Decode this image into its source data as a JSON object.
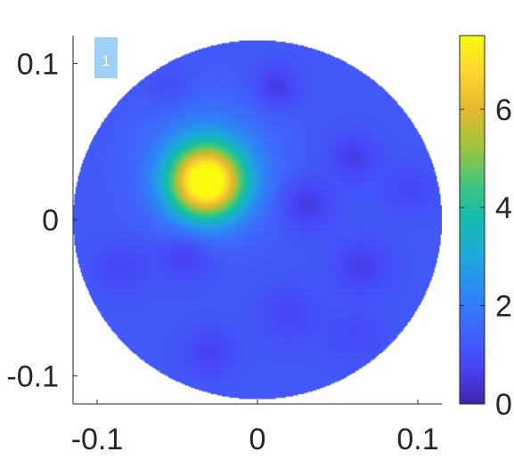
{
  "chart_data": {
    "type": "heatmap",
    "title": "",
    "xlabel": "",
    "ylabel": "",
    "xlim": [
      -0.115,
      0.115
    ],
    "ylim": [
      -0.118,
      0.118
    ],
    "x_ticks": [
      {
        "value": -0.1,
        "label": "-0.1"
      },
      {
        "value": 0,
        "label": "0"
      },
      {
        "value": 0.1,
        "label": "0.1"
      }
    ],
    "y_ticks": [
      {
        "value": 0.1,
        "label": "0.1"
      },
      {
        "value": 0,
        "label": "0"
      },
      {
        "value": -0.1,
        "label": "-0.1"
      }
    ],
    "domain": {
      "shape": "circle",
      "center": [
        0,
        0
      ],
      "radius": 0.115
    },
    "colormap": "parula",
    "clim": [
      0,
      7.5
    ],
    "colorbar": {
      "ticks": [
        {
          "value": 0,
          "label": "0"
        },
        {
          "value": 2,
          "label": "2"
        },
        {
          "value": 4,
          "label": "4"
        },
        {
          "value": 6,
          "label": "6"
        }
      ]
    },
    "baseline": 1.2,
    "blobs": [
      {
        "x": -0.032,
        "y": 0.024,
        "sigma": 0.016,
        "amp": 6.3
      },
      {
        "x": -0.03,
        "y": 0.035,
        "sigma": 0.026,
        "amp": 1.3
      },
      {
        "x": -0.045,
        "y": -0.022,
        "sigma": 0.011,
        "amp": -0.6
      },
      {
        "x": 0.012,
        "y": 0.085,
        "sigma": 0.009,
        "amp": -0.7
      },
      {
        "x": 0.03,
        "y": 0.01,
        "sigma": 0.011,
        "amp": -0.7
      },
      {
        "x": 0.06,
        "y": 0.04,
        "sigma": 0.01,
        "amp": -0.6
      },
      {
        "x": 0.065,
        "y": -0.03,
        "sigma": 0.011,
        "amp": -0.6
      },
      {
        "x": -0.03,
        "y": -0.085,
        "sigma": 0.01,
        "amp": -0.5
      },
      {
        "x": 0.02,
        "y": -0.06,
        "sigma": 0.012,
        "amp": -0.4
      },
      {
        "x": -0.085,
        "y": -0.03,
        "sigma": 0.011,
        "amp": -0.4
      },
      {
        "x": 0.095,
        "y": 0.02,
        "sigma": 0.01,
        "amp": -0.4
      },
      {
        "x": -0.055,
        "y": 0.085,
        "sigma": 0.01,
        "amp": -0.3
      },
      {
        "x": 0.06,
        "y": -0.075,
        "sigma": 0.012,
        "amp": -0.3
      }
    ],
    "annotations": [
      {
        "text": "1",
        "x": -0.095,
        "y": 0.1,
        "background": "#9fd0f5",
        "color": "#ffffff"
      }
    ]
  },
  "colors": {
    "axis": "#262626",
    "colormap_stops": [
      "#3e26a8",
      "#4743f5",
      "#3f66fb",
      "#2d87f5",
      "#1da9da",
      "#11bbae",
      "#43c67a",
      "#9fc53a",
      "#e5b92e",
      "#fdd531",
      "#f9fb0e"
    ]
  }
}
